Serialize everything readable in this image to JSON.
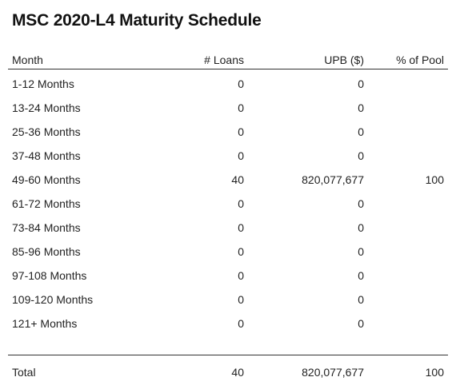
{
  "title": "MSC 2020-L4 Maturity Schedule",
  "columns": {
    "month": "Month",
    "loans": "# Loans",
    "upb": "UPB ($)",
    "pool": "% of Pool"
  },
  "rows": [
    {
      "month": "1-12 Months",
      "loans": "0",
      "upb": "0",
      "pool": ""
    },
    {
      "month": "13-24 Months",
      "loans": "0",
      "upb": "0",
      "pool": ""
    },
    {
      "month": "25-36 Months",
      "loans": "0",
      "upb": "0",
      "pool": ""
    },
    {
      "month": "37-48 Months",
      "loans": "0",
      "upb": "0",
      "pool": ""
    },
    {
      "month": "49-60 Months",
      "loans": "40",
      "upb": "820,077,677",
      "pool": "100"
    },
    {
      "month": "61-72 Months",
      "loans": "0",
      "upb": "0",
      "pool": ""
    },
    {
      "month": "73-84 Months",
      "loans": "0",
      "upb": "0",
      "pool": ""
    },
    {
      "month": "85-96 Months",
      "loans": "0",
      "upb": "0",
      "pool": ""
    },
    {
      "month": "97-108 Months",
      "loans": "0",
      "upb": "0",
      "pool": ""
    },
    {
      "month": "109-120 Months",
      "loans": "0",
      "upb": "0",
      "pool": ""
    },
    {
      "month": "121+ Months",
      "loans": "0",
      "upb": "0",
      "pool": ""
    }
  ],
  "total": {
    "month": "Total",
    "loans": "40",
    "upb": "820,077,677",
    "pool": "100"
  }
}
